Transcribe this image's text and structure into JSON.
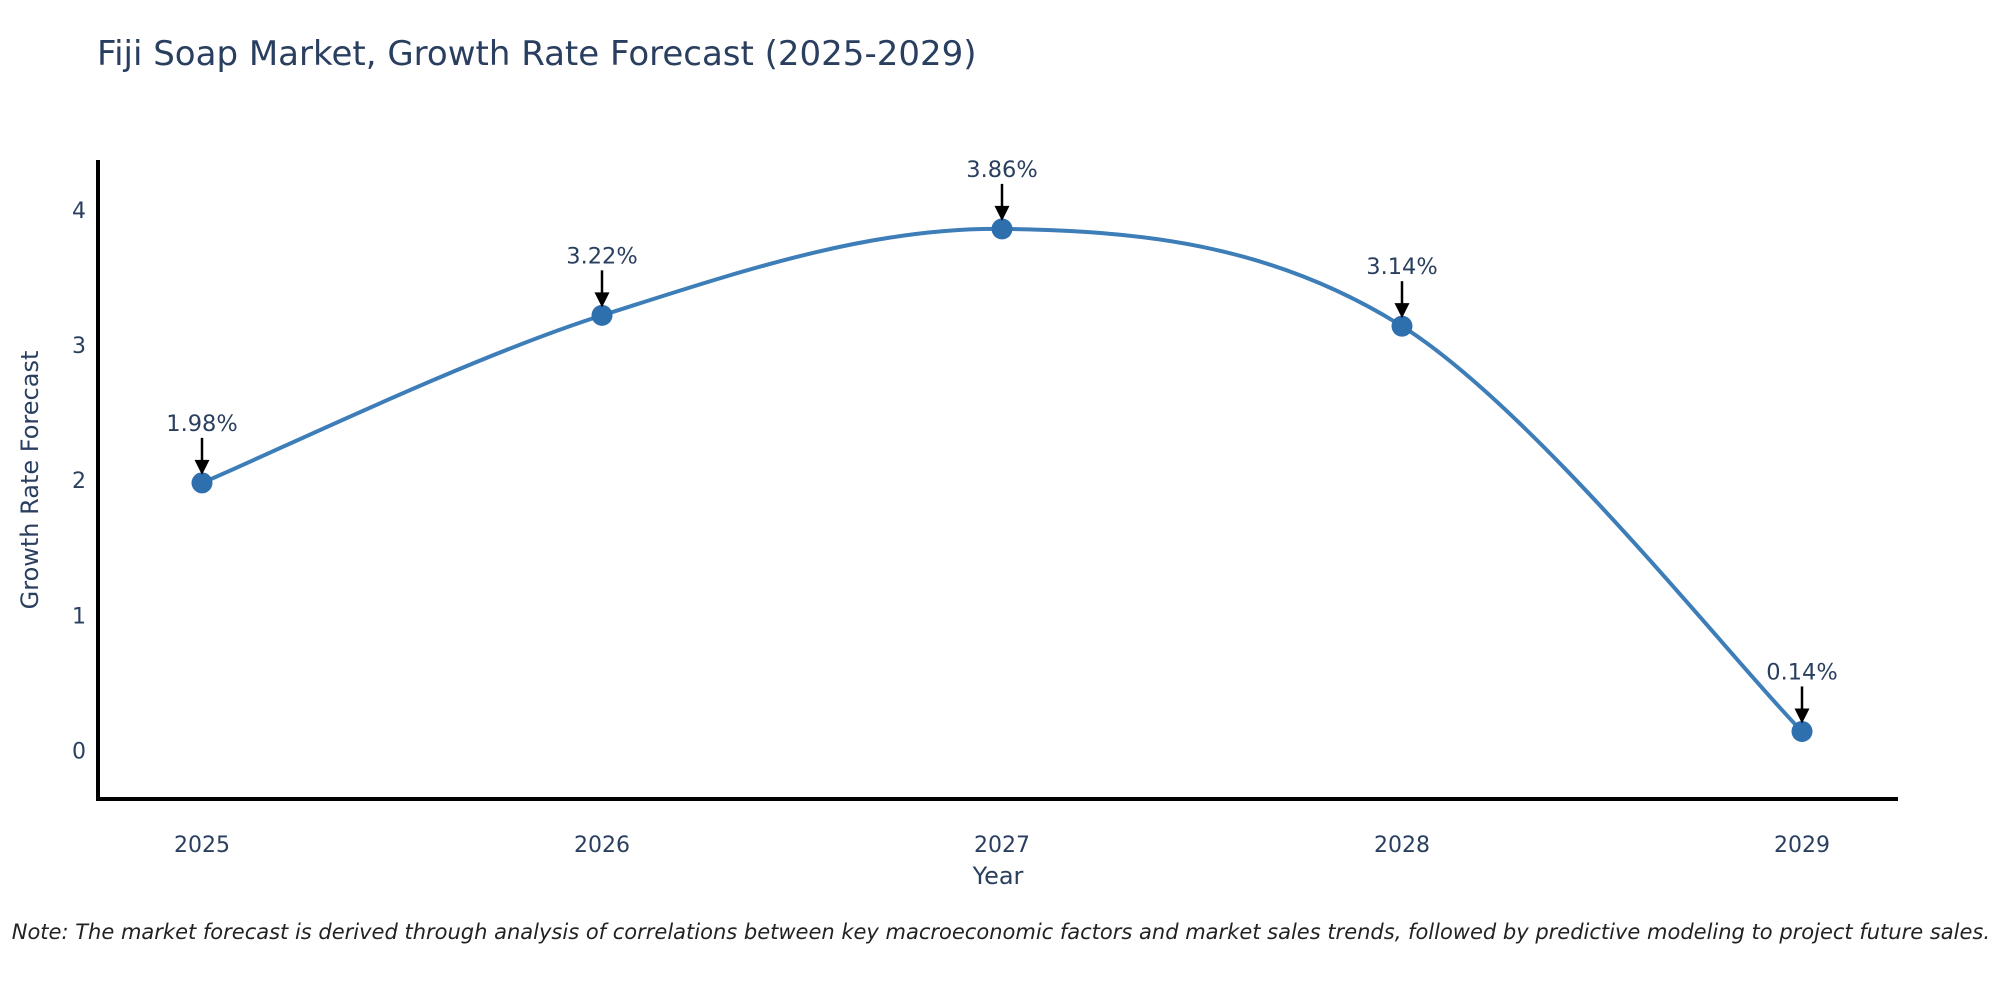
{
  "chart_data": {
    "type": "line",
    "title": "Fiji Soap Market, Growth Rate Forecast (2025-2029)",
    "xlabel": "Year",
    "ylabel": "Growth Rate Forecast",
    "x": [
      2025,
      2026,
      2027,
      2028,
      2029
    ],
    "values": [
      1.98,
      3.22,
      3.86,
      3.14,
      0.14
    ],
    "point_labels": [
      "1.98%",
      "3.22%",
      "3.86%",
      "3.14%",
      "0.14%"
    ],
    "y_ticks": [
      0,
      1,
      2,
      3,
      4
    ],
    "xlim": [
      2024.74,
      2029.24
    ],
    "ylim": [
      -0.36,
      4.37
    ],
    "grid": false,
    "line_shape": "spline",
    "legend": "none",
    "colors": {
      "line": "#3d7db8",
      "marker": "#2e6fae",
      "arrow": "#000000",
      "axis": "#000000",
      "chart_text": "#2a3f5f",
      "note_text": "#222222",
      "background": "#ffffff"
    }
  },
  "note": {
    "text": "Note: The market forecast is derived through analysis of correlations between key macroeconomic factors and market sales trends, followed by predictive modeling to project future sales."
  }
}
